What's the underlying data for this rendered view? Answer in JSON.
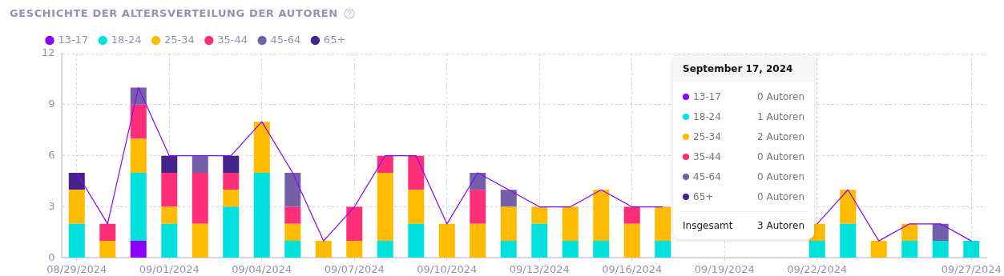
{
  "chart_data": {
    "type": "bar",
    "title": "GESCHICHTE DER ALTERSVERTEILUNG DER AUTOREN",
    "stacked": true,
    "legend": "top left",
    "grid": true,
    "ylim": [
      0,
      12
    ],
    "yticks": [
      0,
      3,
      6,
      9,
      12
    ],
    "categories": [
      "08/29/2024",
      null,
      null,
      "09/01/2024",
      null,
      null,
      "09/04/2024",
      null,
      null,
      "09/07/2024",
      null,
      null,
      "09/10/2024",
      null,
      null,
      "09/13/2024",
      null,
      null,
      "09/16/2024",
      null,
      null,
      "09/19/2024",
      null,
      null,
      "09/22/2024",
      null,
      null,
      null,
      null,
      "09/27/2024"
    ],
    "series": [
      {
        "name": "13-17",
        "color": "#8c00ff",
        "values": [
          0,
          0,
          1,
          0,
          0,
          0,
          0,
          0,
          0,
          0,
          0,
          0,
          0,
          0,
          0,
          0,
          0,
          0,
          0,
          0,
          null,
          null,
          null,
          null,
          0,
          0,
          0,
          0,
          0,
          0
        ]
      },
      {
        "name": "18-24",
        "color": "#00e0dc",
        "values": [
          2,
          0,
          4,
          2,
          0,
          3,
          5,
          1,
          0,
          0,
          1,
          2,
          0,
          0,
          1,
          2,
          1,
          1,
          0,
          1,
          null,
          null,
          null,
          null,
          1,
          2,
          0,
          1,
          1,
          1
        ]
      },
      {
        "name": "25-34",
        "color": "#ffbb00",
        "values": [
          2,
          1,
          2,
          1,
          2,
          1,
          3,
          1,
          1,
          1,
          4,
          2,
          2,
          2,
          2,
          1,
          2,
          3,
          2,
          2,
          null,
          null,
          null,
          null,
          1,
          2,
          1,
          1,
          0,
          0
        ]
      },
      {
        "name": "35-44",
        "color": "#ff2e78",
        "values": [
          0,
          1,
          2,
          2,
          3,
          1,
          0,
          1,
          0,
          2,
          1,
          2,
          0,
          2,
          0,
          0,
          0,
          0,
          1,
          0,
          null,
          null,
          null,
          null,
          0,
          0,
          0,
          0,
          0,
          0
        ]
      },
      {
        "name": "45-64",
        "color": "#7360a8",
        "values": [
          0,
          0,
          1,
          0,
          1,
          0,
          0,
          2,
          0,
          0,
          0,
          0,
          0,
          1,
          1,
          0,
          0,
          0,
          0,
          0,
          null,
          null,
          null,
          null,
          0,
          0,
          0,
          0,
          1,
          0
        ]
      },
      {
        "name": "65+",
        "color": "#45238a",
        "values": [
          1,
          0,
          0,
          1,
          0,
          1,
          0,
          0,
          0,
          0,
          0,
          0,
          0,
          0,
          0,
          0,
          0,
          0,
          0,
          0,
          null,
          null,
          null,
          null,
          0,
          0,
          0,
          0,
          0,
          0
        ]
      },
      {
        "type": "line",
        "color": "#8c00ff",
        "values": [
          5,
          2,
          10,
          6,
          6,
          6,
          8,
          5,
          1,
          3,
          6,
          6,
          2,
          5,
          4,
          3,
          3,
          4,
          3,
          3,
          null,
          null,
          null,
          null,
          2,
          4,
          1,
          2,
          2,
          1
        ]
      }
    ],
    "annotations": [
      "September 17, 2024",
      "0 Autoren",
      "1 Autoren",
      "2 Autoren",
      "0 Autoren",
      "0 Autoren",
      "0 Autoren",
      "Insgesamt",
      "3 Autoren"
    ]
  }
}
